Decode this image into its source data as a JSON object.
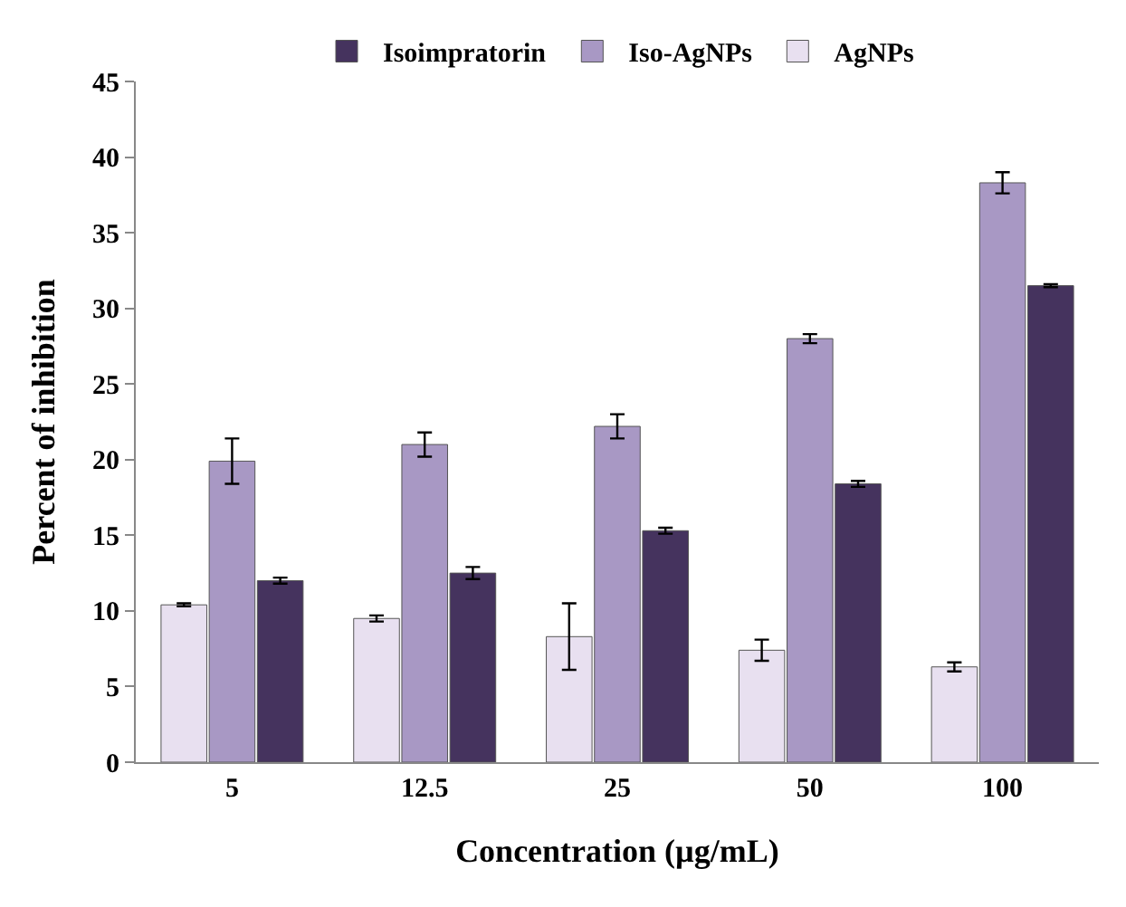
{
  "chart_data": {
    "type": "bar",
    "xlabel": "Concentration (µg/mL)",
    "ylabel": "Percent of inhibition",
    "categories": [
      "5",
      "12.5",
      "25",
      "50",
      "100"
    ],
    "series": [
      {
        "name": "AgNPs",
        "color": "#e8e0f0",
        "values": [
          10.4,
          9.5,
          8.3,
          7.4,
          6.3
        ],
        "errors": [
          0.1,
          0.2,
          2.2,
          0.7,
          0.3
        ]
      },
      {
        "name": "Iso-AgNPs",
        "color": "#a898c4",
        "values": [
          19.9,
          21.0,
          22.2,
          28.0,
          38.3
        ],
        "errors": [
          1.5,
          0.8,
          0.8,
          0.3,
          0.7
        ]
      },
      {
        "name": "Isoimpratorin",
        "color": "#45335e",
        "values": [
          12.0,
          12.5,
          15.3,
          18.4,
          31.5
        ],
        "errors": [
          0.2,
          0.4,
          0.2,
          0.2,
          0.1
        ]
      }
    ],
    "ylim": [
      0,
      45
    ],
    "yticks": [
      0,
      5,
      10,
      15,
      20,
      25,
      30,
      35,
      40,
      45
    ],
    "legend": "top"
  }
}
